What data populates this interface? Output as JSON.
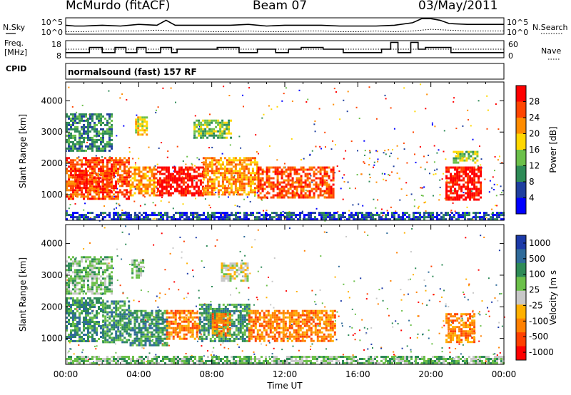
{
  "header": {
    "station": "McMurdo (fitACF)",
    "beam": "Beam 07",
    "date": "03/May/2011"
  },
  "left_labels": {
    "nsky": "N.Sky",
    "freq_line1": "Freq.",
    "freq_line2": "[MHz]",
    "cpid": "CPID"
  },
  "right_labels": {
    "nsearch": "N.Search",
    "nave": "Nave"
  },
  "cpid_text": "normalsound (fast) 157 RF",
  "colors": {
    "power": [
      "#0000ff",
      "#1f3f9f",
      "#2e8b57",
      "#6cc04a",
      "#ffd700",
      "#ff8c00",
      "#ff4500",
      "#ff0000"
    ],
    "velocity": [
      "#1c3aa8",
      "#2f6b9a",
      "#2e8b57",
      "#6cc04a",
      "#c8c8c8",
      "#ffb000",
      "#ff8000",
      "#ff4000",
      "#ff0000"
    ]
  },
  "chart_data": [
    {
      "type": "line",
      "title": "N.Sky / N.Search",
      "y_ticks": [
        "10^5",
        "10^0"
      ],
      "y_ticks_right": [
        "10^5",
        "10^0"
      ],
      "xlim": [
        0,
        24
      ],
      "series": [
        {
          "name": "N.Sky",
          "style": "solid",
          "x": [
            0,
            0.5,
            1,
            2,
            3,
            4,
            5,
            5.5,
            6,
            7,
            8,
            9,
            10,
            11,
            12,
            13,
            14,
            15,
            16,
            17,
            18,
            19,
            19.5,
            20,
            20.5,
            21,
            22,
            23,
            24
          ],
          "y": [
            0.55,
            0.5,
            0.5,
            0.55,
            0.5,
            0.6,
            0.55,
            0.85,
            0.55,
            0.55,
            0.55,
            0.55,
            0.6,
            0.5,
            0.55,
            0.55,
            0.55,
            0.5,
            0.5,
            0.5,
            0.55,
            0.7,
            0.95,
            0.95,
            0.85,
            0.65,
            0.6,
            0.6,
            0.6
          ]
        },
        {
          "name": "N.Search",
          "style": "dotted",
          "x": [
            0,
            1,
            2,
            3,
            4,
            5,
            6,
            7,
            8,
            9,
            10,
            11,
            12,
            13,
            14,
            15,
            16,
            17,
            18,
            19,
            20,
            21,
            22,
            23,
            24
          ],
          "y": [
            0.15,
            0.15,
            0.2,
            0.2,
            0.2,
            0.25,
            0.2,
            0.2,
            0.15,
            0.15,
            0.2,
            0.15,
            0.15,
            0.2,
            0.2,
            0.15,
            0.15,
            0.2,
            0.15,
            0.2,
            0.3,
            0.25,
            0.2,
            0.2,
            0.2
          ]
        }
      ]
    },
    {
      "type": "line",
      "title": "Frequency / Nave",
      "y_ticks": [
        "18",
        "8"
      ],
      "y_ticks_right": [
        "60",
        "0"
      ],
      "xlim": [
        0,
        24
      ],
      "series": [
        {
          "name": "Freq",
          "style": "solid",
          "step": true,
          "x": [
            0,
            1.3,
            2.0,
            2.7,
            3.3,
            3.9,
            4.4,
            5.2,
            5.8,
            6.1,
            8.3,
            9.5,
            10.5,
            11.5,
            12.2,
            12.9,
            14.1,
            15.2,
            17.3,
            17.8,
            18.2,
            18.9,
            19.3,
            19.7,
            21.1,
            24
          ],
          "y": [
            11,
            14,
            11,
            14,
            11,
            14,
            11,
            14,
            11,
            13,
            14,
            11,
            13,
            11,
            13,
            14,
            13,
            11,
            13,
            17,
            11,
            17,
            13,
            14,
            11,
            11
          ]
        },
        {
          "name": "Nave",
          "style": "dotted",
          "x": [
            0,
            6,
            12,
            18,
            24
          ],
          "y": [
            30,
            30,
            30,
            30,
            30
          ]
        }
      ]
    },
    {
      "type": "heatmap",
      "title": "Power",
      "ylabel": "Slant Range [km]",
      "xlabel": "",
      "colorbar_label": "Power [dB]",
      "colorbar_ticks": [
        4,
        8,
        12,
        16,
        20,
        24,
        28
      ],
      "ylim": [
        180,
        4600
      ],
      "y_ticks": [
        1000,
        2000,
        3000,
        4000
      ],
      "x_ticks": [
        "00:00",
        "04:00",
        "08:00",
        "12:00",
        "16:00",
        "20:00",
        "00:00"
      ],
      "xlim_hours": [
        0,
        24
      ],
      "blocks": [
        {
          "x": [
            0.0,
            3.5
          ],
          "y": [
            900,
            2200
          ],
          "level": 6
        },
        {
          "x": [
            0.5,
            1.2
          ],
          "y": [
            1200,
            1800
          ],
          "level": 7
        },
        {
          "x": [
            1.5,
            2.5
          ],
          "y": [
            1100,
            1700
          ],
          "level": 6
        },
        {
          "x": [
            3.5,
            5.0
          ],
          "y": [
            1000,
            1900
          ],
          "level": 5
        },
        {
          "x": [
            3.8,
            4.5
          ],
          "y": [
            2900,
            3500
          ],
          "level": 4
        },
        {
          "x": [
            5.0,
            7.5
          ],
          "y": [
            1000,
            1900
          ],
          "level": 7
        },
        {
          "x": [
            7.5,
            10.5
          ],
          "y": [
            1000,
            2200
          ],
          "level": 5
        },
        {
          "x": [
            10.5,
            14.7
          ],
          "y": [
            900,
            1900
          ],
          "level": 6
        },
        {
          "x": [
            0.0,
            2.5
          ],
          "y": [
            2400,
            3600
          ],
          "level": 2
        },
        {
          "x": [
            7.0,
            9.0
          ],
          "y": [
            2800,
            3400
          ],
          "level": 3
        },
        {
          "x": [
            20.8,
            22.7
          ],
          "y": [
            850,
            1900
          ],
          "level": 7
        },
        {
          "x": [
            21.2,
            22.5
          ],
          "y": [
            2000,
            2400
          ],
          "level": 3
        },
        {
          "x": [
            0.0,
            24.0
          ],
          "y": [
            200,
            450
          ],
          "level": 1
        }
      ]
    },
    {
      "type": "heatmap",
      "title": "Velocity",
      "ylabel": "Slant Range [km]",
      "xlabel": "Time UT",
      "colorbar_label": "Velocity [m s^-1]",
      "colorbar_ticks": [
        1000,
        500,
        100,
        25,
        -25,
        -100,
        -500,
        -1000
      ],
      "ylim": [
        180,
        4600
      ],
      "y_ticks": [
        1000,
        2000,
        3000,
        4000
      ],
      "x_ticks": [
        "00:00",
        "04:00",
        "08:00",
        "12:00",
        "16:00",
        "20:00",
        "00:00"
      ],
      "xlim_hours": [
        0,
        24
      ],
      "blocks": [
        {
          "x": [
            0.0,
            2.0
          ],
          "y": [
            900,
            2300
          ],
          "level": 2
        },
        {
          "x": [
            2.0,
            3.5
          ],
          "y": [
            900,
            2200
          ],
          "level": 2
        },
        {
          "x": [
            3.5,
            5.5
          ],
          "y": [
            800,
            1900
          ],
          "level": 2
        },
        {
          "x": [
            5.5,
            7.3
          ],
          "y": [
            1000,
            1900
          ],
          "level": 6
        },
        {
          "x": [
            7.3,
            10.0
          ],
          "y": [
            900,
            2100
          ],
          "level": 2
        },
        {
          "x": [
            8.0,
            9.0
          ],
          "y": [
            1100,
            1800
          ],
          "level": 6
        },
        {
          "x": [
            10.0,
            14.8
          ],
          "y": [
            900,
            1900
          ],
          "level": 6
        },
        {
          "x": [
            3.6,
            4.2
          ],
          "y": [
            2900,
            3500
          ],
          "level": 3
        },
        {
          "x": [
            0.0,
            2.5
          ],
          "y": [
            2400,
            3600
          ],
          "level": 3
        },
        {
          "x": [
            8.5,
            10.0
          ],
          "y": [
            2800,
            3400
          ],
          "level": 4
        },
        {
          "x": [
            20.8,
            22.4
          ],
          "y": [
            900,
            1800
          ],
          "level": 6
        },
        {
          "x": [
            0.0,
            24.0
          ],
          "y": [
            200,
            450
          ],
          "level": 3
        }
      ]
    }
  ],
  "axes": {
    "xlabel": "Time UT",
    "power_cb_label": "Power [dB]",
    "velocity_cb_label": "Velocity [m s"
  }
}
